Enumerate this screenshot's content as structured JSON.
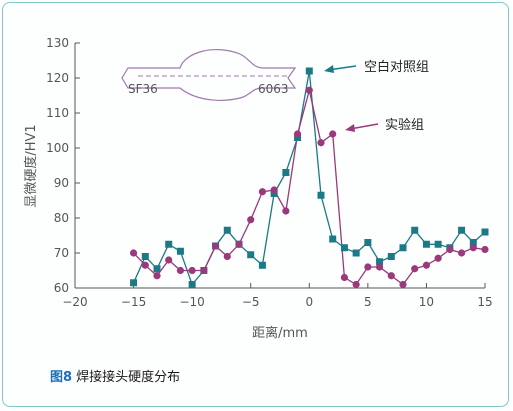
{
  "caption": {
    "figure_no": "图8",
    "text": " 焊接接头硬度分布"
  },
  "chart_data": {
    "type": "scatter",
    "xlabel": "距离/mm",
    "ylabel": "显微硬度/HV1",
    "xlim": [
      -20,
      15
    ],
    "ylim": [
      60,
      130
    ],
    "xticks": [
      -20,
      -15,
      -10,
      -5,
      0,
      5,
      10,
      15
    ],
    "yticks": [
      60,
      70,
      80,
      90,
      100,
      110,
      120,
      130
    ],
    "grid": false,
    "series": [
      {
        "name": "空白对照组",
        "color": "#1a7a86",
        "marker": "square",
        "x": [
          -15,
          -14,
          -13,
          -12,
          -11,
          -10,
          -9,
          -8,
          -7,
          -6,
          -5,
          -4,
          -3,
          -2,
          -1,
          0,
          1,
          2,
          3,
          4,
          5,
          6,
          7,
          8,
          9,
          10,
          11,
          12,
          13,
          14,
          15
        ],
        "y": [
          61.5,
          69,
          65.5,
          72.5,
          70.5,
          61,
          65,
          72,
          76.5,
          72.5,
          69.5,
          66.5,
          87,
          93,
          103,
          122,
          86.5,
          74,
          71.5,
          70,
          73,
          67.5,
          69,
          71.5,
          76.5,
          72.5,
          72.5,
          71.5,
          76.5,
          73,
          76
        ]
      },
      {
        "name": "实验组",
        "color": "#9a3a7c",
        "marker": "circle",
        "x": [
          -15,
          -14,
          -13,
          -12,
          -11,
          -10,
          -9,
          -8,
          -7,
          -6,
          -5,
          -4,
          -3,
          -2,
          -1,
          0,
          1,
          2,
          3,
          4,
          5,
          6,
          7,
          8,
          9,
          10,
          11,
          12,
          13,
          14,
          15
        ],
        "y": [
          70,
          66.5,
          63.5,
          68,
          65,
          65,
          65,
          72,
          69,
          72.5,
          79.5,
          87.5,
          88,
          82,
          104,
          116.5,
          101.5,
          104,
          63,
          61,
          66,
          66,
          63.5,
          61,
          65.5,
          66.5,
          68.5,
          71,
          70,
          71.5,
          71
        ]
      }
    ],
    "annotations": [
      {
        "text": "空白对照组",
        "target_series": 0
      },
      {
        "text": "实验组",
        "target_series": 1
      },
      {
        "text": "SF36",
        "type": "inset-label"
      },
      {
        "text": "6063",
        "type": "inset-label"
      }
    ]
  }
}
